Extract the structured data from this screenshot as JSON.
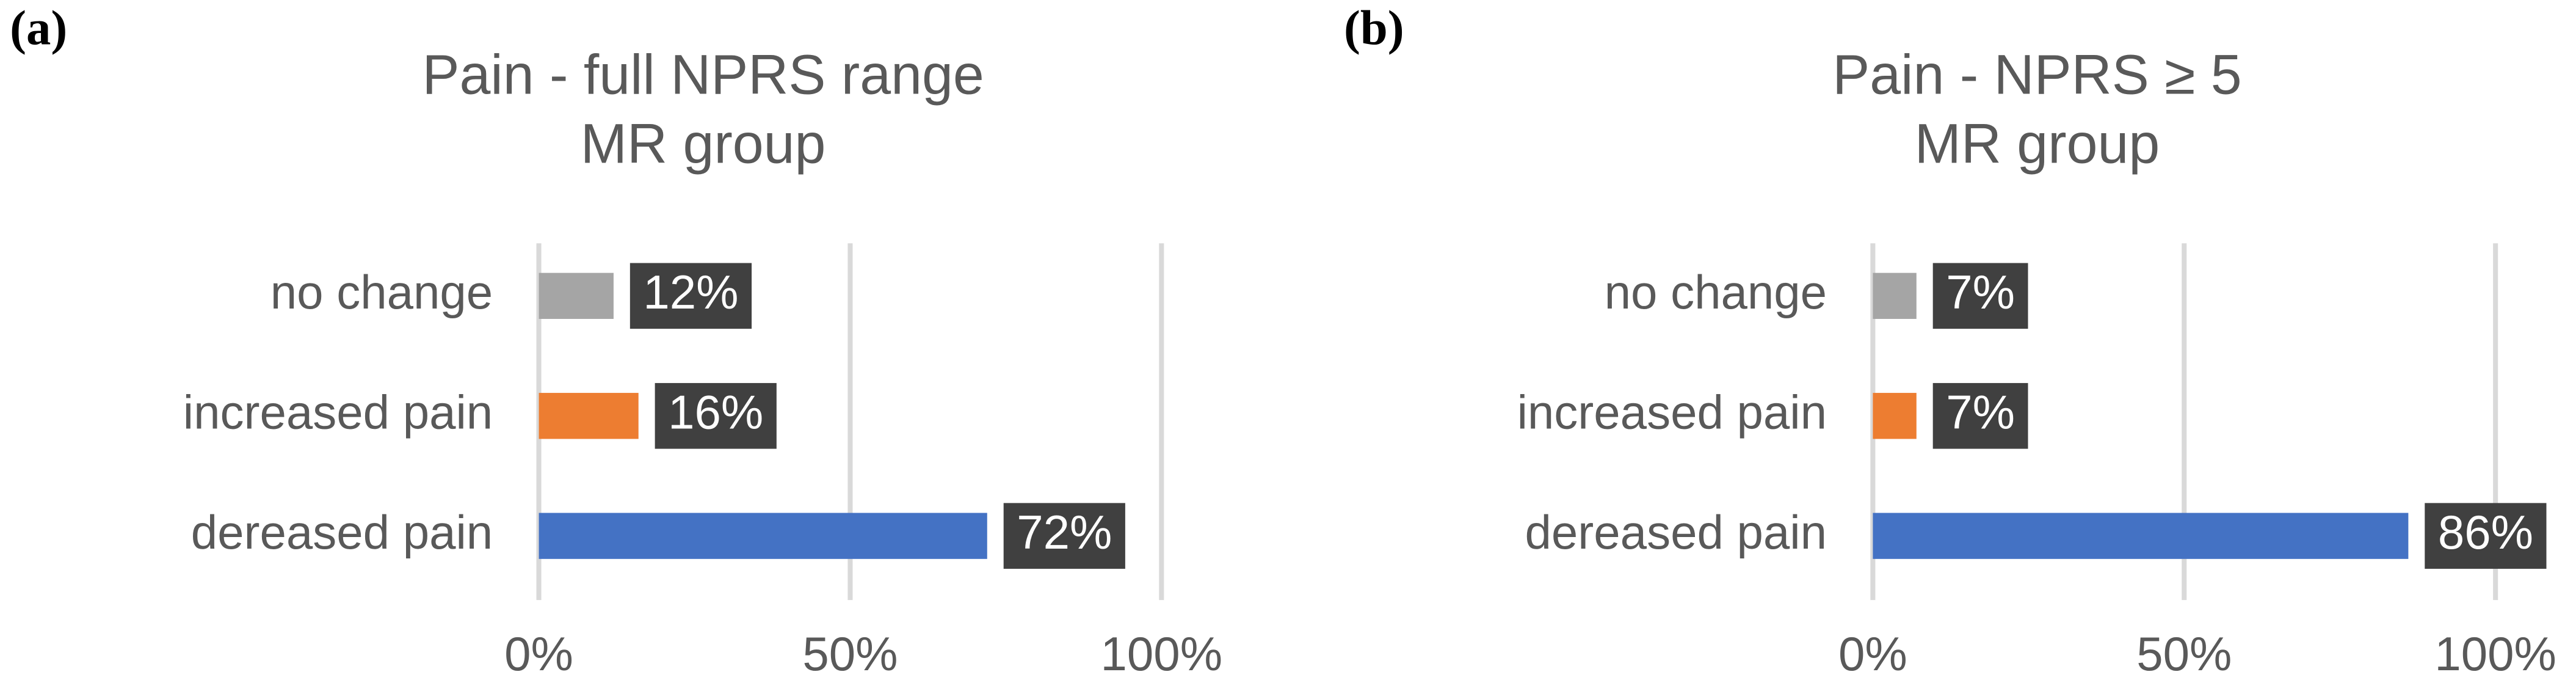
{
  "chart_data": [
    {
      "type": "bar",
      "orientation": "horizontal",
      "panel": "(a)",
      "title": "Pain - full NPRS range",
      "subtitle": "MR group",
      "categories": [
        "no change",
        "increased pain",
        "dereased pain"
      ],
      "values": [
        12,
        16,
        72
      ],
      "value_labels": [
        "12%",
        "16%",
        "72%"
      ],
      "colors": [
        "#a5a5a5",
        "#ed7d31",
        "#4472c4"
      ],
      "xlim": [
        0,
        100
      ],
      "xticks": [
        {
          "value": 0,
          "label": "0%"
        },
        {
          "value": 50,
          "label": "50%"
        },
        {
          "value": 100,
          "label": "100%"
        }
      ],
      "grid": true
    },
    {
      "type": "bar",
      "orientation": "horizontal",
      "panel": "(b)",
      "title": "Pain - NPRS ≥ 5",
      "subtitle": "MR group",
      "categories": [
        "no change",
        "increased pain",
        "dereased pain"
      ],
      "values": [
        7,
        7,
        86
      ],
      "value_labels": [
        "7%",
        "7%",
        "86%"
      ],
      "colors": [
        "#a5a5a5",
        "#ed7d31",
        "#4472c4"
      ],
      "xlim": [
        0,
        100
      ],
      "xticks": [
        {
          "value": 0,
          "label": "0%"
        },
        {
          "value": 50,
          "label": "50%"
        },
        {
          "value": 100,
          "label": "100%"
        }
      ],
      "grid": true
    }
  ]
}
